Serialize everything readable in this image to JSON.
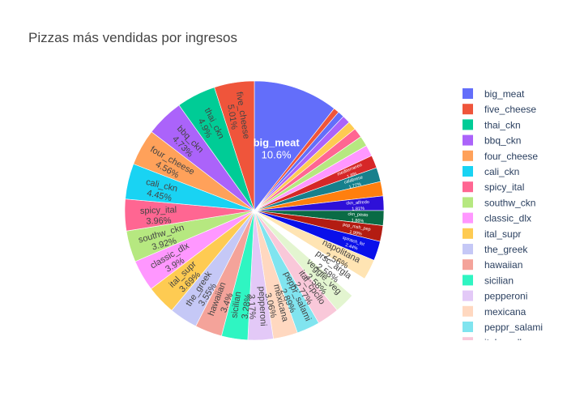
{
  "chart_data": {
    "type": "pie",
    "title": "Pizzas más vendidas por ingresos",
    "slices": [
      {
        "label": "big_meat",
        "value": 10.6,
        "text": "10.6%",
        "color": "#636efa"
      },
      {
        "label": "",
        "value": 0.7,
        "text": "",
        "color": "#ef553b"
      },
      {
        "label": "",
        "value": 0.8,
        "text": "",
        "color": "#636efa"
      },
      {
        "label": "",
        "value": 1.0,
        "text": "",
        "color": "#ab63fa"
      },
      {
        "label": "",
        "value": 1.1,
        "text": "",
        "color": "#fecb52"
      },
      {
        "label": "",
        "value": 1.2,
        "text": "",
        "color": "#ff6692"
      },
      {
        "label": "",
        "value": 1.3,
        "text": "",
        "color": "#b6e880"
      },
      {
        "label": "",
        "value": 1.4,
        "text": "",
        "color": "#ff97ff"
      },
      {
        "label": "mediterraneo",
        "value": 1.6,
        "text": "1.6%",
        "color": "#d62728"
      },
      {
        "label": "calabrese",
        "value": 1.77,
        "text": "1.77%",
        "color": "#17808c"
      },
      {
        "label": "",
        "value": 1.8,
        "text": "",
        "color": "#ff7f0e"
      },
      {
        "label": "ckn_alfredo",
        "value": 1.81,
        "text": "1.81%",
        "color": "#2e10d8"
      },
      {
        "label": "ckn_pesto",
        "value": 1.86,
        "text": "1.86%",
        "color": "#0a6b45"
      },
      {
        "label": "pep_msh_pep",
        "value": 1.99,
        "text": "1.99%",
        "color": "#b31c12"
      },
      {
        "label": "spinach_fet",
        "value": 2.44,
        "text": "2.44%",
        "color": "#0a10ea"
      },
      {
        "label": "napolitana",
        "value": 2.56,
        "text": "2.56%",
        "color": "#ffe4b3"
      },
      {
        "label": "prsc_argla",
        "value": 2.58,
        "text": "2.58%",
        "color": "#ffffff"
      },
      {
        "label": "veggie_veg",
        "value": 2.58,
        "text": "2.58%",
        "color": "#e3f5d0"
      },
      {
        "label": "ital_cpcllo",
        "value": 2.77,
        "text": "2.77%",
        "color": "#f9c8d9"
      },
      {
        "label": "peppr_salami",
        "value": 2.89,
        "text": "2.89%",
        "color": "#80e4ef"
      },
      {
        "label": "mexicana",
        "value": 3.06,
        "text": "3.06%",
        "color": "#ffd8c0"
      },
      {
        "label": "pepperoni",
        "value": 3.17,
        "text": "3.17%",
        "color": "#e3c9f7"
      },
      {
        "label": "sicilian",
        "value": 3.28,
        "text": "3.28%",
        "color": "#2ff5c2"
      },
      {
        "label": "hawaiian",
        "value": 3.4,
        "text": "3.4%",
        "color": "#f4a39a"
      },
      {
        "label": "the_greek",
        "value": 3.55,
        "text": "3.55%",
        "color": "#c5c8f6"
      },
      {
        "label": "ital_supr",
        "value": 3.69,
        "text": "3.69%",
        "color": "#fecb52"
      },
      {
        "label": "classic_dlx",
        "value": 3.9,
        "text": "3.9%",
        "color": "#ff97ff"
      },
      {
        "label": "southw_ckn",
        "value": 3.92,
        "text": "3.92%",
        "color": "#b6e880"
      },
      {
        "label": "spicy_ital",
        "value": 3.96,
        "text": "3.96%",
        "color": "#ff6692"
      },
      {
        "label": "cali_ckn",
        "value": 4.45,
        "text": "4.45%",
        "color": "#19d3f3"
      },
      {
        "label": "four_cheese",
        "value": 4.56,
        "text": "4.56%",
        "color": "#ffa15a"
      },
      {
        "label": "bbq_ckn",
        "value": 4.73,
        "text": "4.73%",
        "color": "#ab63fa"
      },
      {
        "label": "thai_ckn",
        "value": 4.9,
        "text": "4.9%",
        "color": "#00cc96"
      },
      {
        "label": "five_cheese",
        "value": 5.01,
        "text": "5.01%",
        "color": "#ef553b"
      }
    ],
    "legend": {
      "position": "right",
      "entries": [
        {
          "label": "big_meat",
          "color": "#636efa"
        },
        {
          "label": "five_cheese",
          "color": "#ef553b"
        },
        {
          "label": "thai_ckn",
          "color": "#00cc96"
        },
        {
          "label": "bbq_ckn",
          "color": "#ab63fa"
        },
        {
          "label": "four_cheese",
          "color": "#ffa15a"
        },
        {
          "label": "cali_ckn",
          "color": "#19d3f3"
        },
        {
          "label": "spicy_ital",
          "color": "#ff6692"
        },
        {
          "label": "southw_ckn",
          "color": "#b6e880"
        },
        {
          "label": "classic_dlx",
          "color": "#ff97ff"
        },
        {
          "label": "ital_supr",
          "color": "#fecb52"
        },
        {
          "label": "the_greek",
          "color": "#c5c8f6"
        },
        {
          "label": "hawaiian",
          "color": "#f4a39a"
        },
        {
          "label": "sicilian",
          "color": "#2ff5c2"
        },
        {
          "label": "pepperoni",
          "color": "#e3c9f7"
        },
        {
          "label": "mexicana",
          "color": "#ffd8c0"
        },
        {
          "label": "peppr_salami",
          "color": "#80e4ef"
        },
        {
          "label": "ital_cpcllo",
          "color": "#f9c8d9"
        }
      ]
    }
  }
}
